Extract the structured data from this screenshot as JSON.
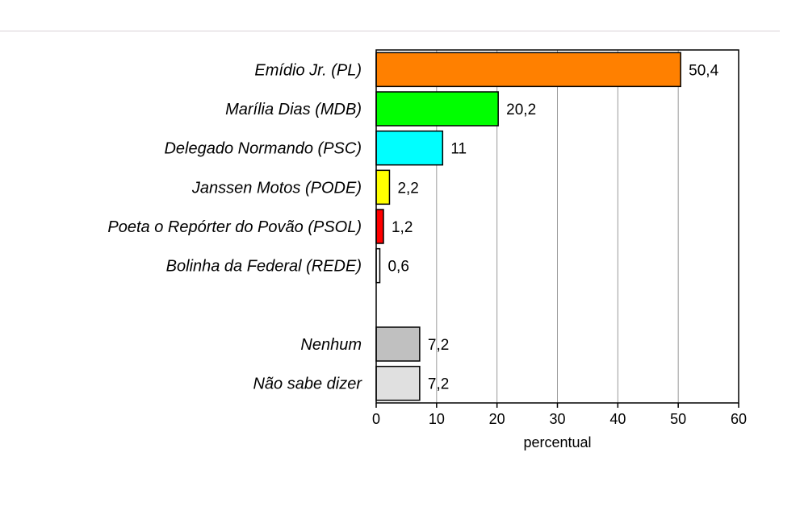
{
  "chart_data": {
    "type": "bar",
    "orientation": "horizontal",
    "title": "",
    "xlabel": "percentual",
    "ylabel": "",
    "xlim": [
      0,
      60
    ],
    "xticks": [
      0,
      10,
      20,
      30,
      40,
      50,
      60
    ],
    "grid": true,
    "categories": [
      "Emídio Jr. (PL)",
      "Marília Dias (MDB)",
      "Delegado Normando (PSC)",
      "Janssen Motos (PODE)",
      "Poeta o Repórter do Povão (PSOL)",
      "Bolinha da Federal (REDE)",
      "",
      "Nenhum",
      "Não sabe dizer"
    ],
    "values": [
      50.4,
      20.2,
      11,
      2.2,
      1.2,
      0.6,
      null,
      7.2,
      7.2
    ],
    "value_labels": [
      "50,4",
      "20,2",
      "11",
      "2,2",
      "1,2",
      "0,6",
      "",
      "7,2",
      "7,2"
    ],
    "colors": [
      "#ff8000",
      "#00ff00",
      "#00ffff",
      "#ffff00",
      "#ff0000",
      "#ffffff",
      "",
      "#c0c0c0",
      "#e0e0e0"
    ]
  }
}
